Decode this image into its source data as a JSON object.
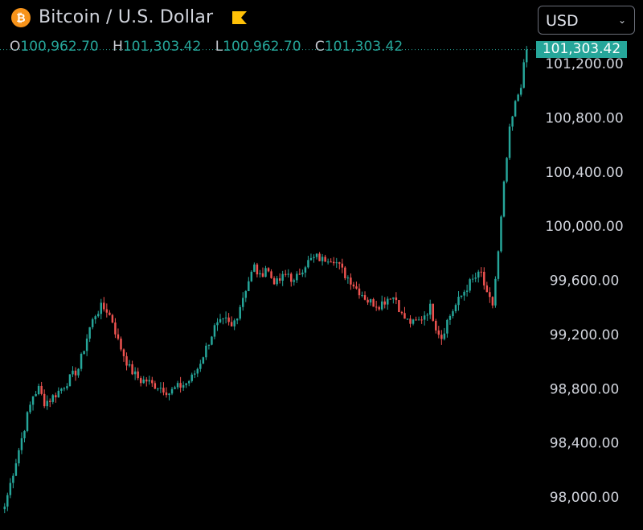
{
  "header": {
    "symbol_icon": "bitcoin-icon",
    "title": "Bitcoin / U.S. Dollar",
    "flag_icon": "flag-icon",
    "currency_select": {
      "selected": "USD"
    }
  },
  "ohlc": {
    "open_label": "O",
    "open": "100,962.70",
    "high_label": "H",
    "high": "101,303.42",
    "low_label": "L",
    "low": "100,962.70",
    "close_label": "C",
    "close": "101,303.42"
  },
  "last_price_label": "101,303.42",
  "colors": {
    "up": "#26a69a",
    "down": "#ef5350",
    "background": "#000000",
    "text": "#d1d4dc",
    "bitcoin": "#f7931a"
  },
  "chart_data": {
    "type": "candlestick",
    "y_tick_labels": [
      "101,200.00",
      "100,800.00",
      "100,400.00",
      "100,000.00",
      "99,600.00",
      "99,200.00",
      "98,800.00",
      "98,400.00",
      "98,000.00"
    ],
    "y_ticks": [
      101200,
      100800,
      100400,
      100000,
      99600,
      99200,
      98800,
      98400,
      98000
    ],
    "ylim": [
      97930,
      101360
    ],
    "grid": false,
    "last_price": 101303.42,
    "close_path": [
      [
        0,
        97930
      ],
      [
        2,
        98100
      ],
      [
        5,
        98350
      ],
      [
        8,
        98600
      ],
      [
        10,
        98750
      ],
      [
        12,
        98800
      ],
      [
        14,
        98700
      ],
      [
        16,
        98720
      ],
      [
        18,
        98760
      ],
      [
        20,
        98800
      ],
      [
        22,
        98850
      ],
      [
        24,
        98900
      ],
      [
        26,
        98950
      ],
      [
        28,
        99100
      ],
      [
        30,
        99250
      ],
      [
        32,
        99350
      ],
      [
        34,
        99400
      ],
      [
        36,
        99380
      ],
      [
        38,
        99300
      ],
      [
        40,
        99150
      ],
      [
        42,
        99050
      ],
      [
        44,
        98950
      ],
      [
        46,
        98900
      ],
      [
        48,
        98860
      ],
      [
        50,
        98860
      ],
      [
        52,
        98830
      ],
      [
        54,
        98820
      ],
      [
        56,
        98800
      ],
      [
        58,
        98770
      ],
      [
        60,
        98800
      ],
      [
        62,
        98820
      ],
      [
        64,
        98840
      ],
      [
        66,
        98880
      ],
      [
        68,
        98950
      ],
      [
        70,
        99050
      ],
      [
        72,
        99150
      ],
      [
        74,
        99250
      ],
      [
        76,
        99280
      ],
      [
        78,
        99300
      ],
      [
        80,
        99250
      ],
      [
        82,
        99350
      ],
      [
        84,
        99480
      ],
      [
        86,
        99600
      ],
      [
        88,
        99700
      ],
      [
        90,
        99620
      ],
      [
        92,
        99700
      ],
      [
        94,
        99620
      ],
      [
        96,
        99580
      ],
      [
        98,
        99620
      ],
      [
        100,
        99650
      ],
      [
        102,
        99580
      ],
      [
        104,
        99660
      ],
      [
        106,
        99720
      ],
      [
        108,
        99750
      ],
      [
        110,
        99770
      ],
      [
        112,
        99750
      ],
      [
        114,
        99770
      ],
      [
        116,
        99760
      ],
      [
        118,
        99700
      ],
      [
        120,
        99640
      ],
      [
        122,
        99600
      ],
      [
        124,
        99540
      ],
      [
        126,
        99500
      ],
      [
        128,
        99450
      ],
      [
        130,
        99430
      ],
      [
        132,
        99420
      ],
      [
        134,
        99450
      ],
      [
        136,
        99490
      ],
      [
        138,
        99460
      ],
      [
        140,
        99340
      ],
      [
        142,
        99300
      ],
      [
        144,
        99280
      ],
      [
        146,
        99300
      ],
      [
        148,
        99350
      ],
      [
        150,
        99400
      ],
      [
        152,
        99260
      ],
      [
        154,
        99180
      ],
      [
        156,
        99300
      ],
      [
        158,
        99380
      ],
      [
        160,
        99450
      ],
      [
        162,
        99520
      ],
      [
        164,
        99580
      ],
      [
        166,
        99620
      ],
      [
        168,
        99650
      ],
      [
        170,
        99480
      ],
      [
        172,
        99420
      ],
      [
        174,
        99800
      ],
      [
        176,
        100300
      ],
      [
        178,
        100700
      ],
      [
        180,
        100900
      ],
      [
        182,
        101050
      ],
      [
        184,
        101303
      ]
    ]
  }
}
